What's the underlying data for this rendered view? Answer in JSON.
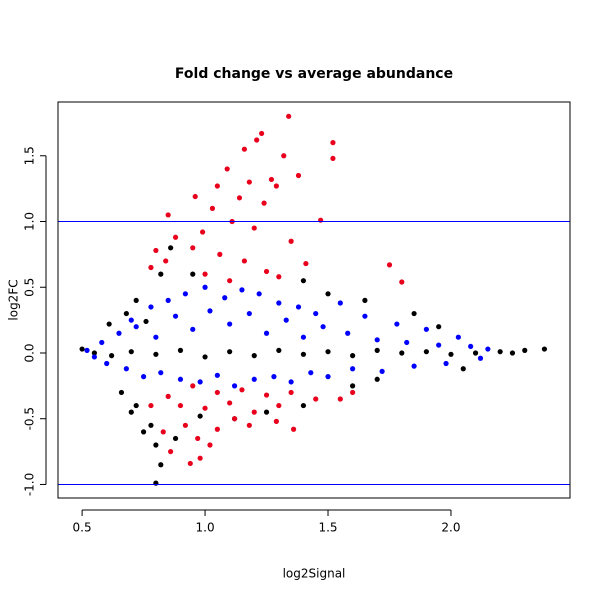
{
  "chart_data": {
    "type": "scatter",
    "title": "Fold change vs average abundance",
    "x_label": "log2Signal",
    "y_label": "log2FC",
    "xlim": [
      0.402,
      2.484
    ],
    "ylim": [
      -1.103,
      1.909
    ],
    "xticks": [
      0.5,
      {
        "value": 1,
        "label": "1.0"
      },
      1.5,
      {
        "value": 2,
        "label": "2.0"
      }
    ],
    "yticks": [
      {
        "value": -1,
        "label": "-1.0"
      },
      -0.5,
      {
        "value": 0,
        "label": "0.0"
      },
      0.5,
      {
        "value": 1,
        "label": "1.0"
      },
      1.5
    ],
    "hlines": [
      1,
      -1
    ],
    "hline_color": "#0000ff",
    "series": [
      {
        "color": "#000000",
        "x": [
          0.5,
          0.55,
          0.62,
          0.7,
          0.8,
          0.9,
          1.0,
          1.1,
          1.2,
          1.3,
          1.4,
          1.5,
          1.6,
          1.7,
          1.8,
          1.9,
          2.0,
          2.1,
          2.2,
          2.25,
          2.3,
          2.38,
          0.61,
          0.68,
          0.72,
          0.82,
          0.86,
          0.66,
          0.72,
          0.78,
          0.8,
          0.82,
          0.8,
          0.75,
          0.7,
          0.88,
          0.98,
          1.12,
          1.25,
          1.4,
          1.6,
          1.7,
          1.85,
          1.95,
          1.5,
          1.4,
          1.65,
          0.95,
          0.76,
          2.05
        ],
        "values": [
          0.03,
          0.0,
          -0.02,
          0.01,
          -0.01,
          0.02,
          -0.03,
          0.01,
          -0.02,
          0.02,
          -0.01,
          0.01,
          -0.02,
          0.02,
          0.0,
          0.01,
          -0.01,
          0.0,
          0.01,
          0.0,
          0.02,
          0.03,
          0.22,
          0.3,
          0.4,
          0.6,
          0.8,
          -0.3,
          -0.4,
          -0.55,
          -0.7,
          -0.85,
          -0.99,
          -0.6,
          -0.45,
          -0.65,
          -0.48,
          -0.5,
          -0.45,
          -0.4,
          -0.25,
          -0.2,
          0.3,
          0.2,
          0.45,
          0.55,
          0.4,
          0.6,
          0.24,
          -0.12
        ]
      },
      {
        "color": "#0000ff",
        "x": [
          0.52,
          0.55,
          0.58,
          0.6,
          0.65,
          0.68,
          0.7,
          0.72,
          0.75,
          0.78,
          0.8,
          0.82,
          0.85,
          0.88,
          0.9,
          0.92,
          0.95,
          0.98,
          1.0,
          1.02,
          1.05,
          1.08,
          1.1,
          1.12,
          1.15,
          1.18,
          1.2,
          1.22,
          1.25,
          1.28,
          1.3,
          1.33,
          1.35,
          1.38,
          1.4,
          1.43,
          1.45,
          1.48,
          1.5,
          1.55,
          1.58,
          1.6,
          1.65,
          1.7,
          1.72,
          1.78,
          1.82,
          1.85,
          1.9,
          1.95,
          1.98,
          2.03,
          2.08,
          2.12,
          2.15
        ],
        "values": [
          0.02,
          -0.03,
          0.08,
          -0.08,
          0.15,
          -0.12,
          0.25,
          0.2,
          -0.18,
          0.35,
          0.12,
          -0.15,
          0.4,
          0.28,
          -0.2,
          0.45,
          0.18,
          -0.22,
          0.5,
          0.32,
          -0.17,
          0.42,
          0.22,
          -0.25,
          0.48,
          0.3,
          -0.2,
          0.45,
          0.15,
          -0.18,
          0.38,
          0.25,
          -0.22,
          0.35,
          0.12,
          -0.15,
          0.3,
          0.2,
          -0.18,
          0.38,
          0.15,
          -0.12,
          0.28,
          0.1,
          -0.14,
          0.22,
          0.08,
          -0.1,
          0.18,
          0.06,
          -0.08,
          0.12,
          0.05,
          -0.04,
          0.03
        ]
      },
      {
        "color": "#e8001c",
        "x": [
          1.34,
          1.23,
          1.21,
          1.52,
          1.52,
          1.16,
          1.32,
          1.09,
          1.18,
          1.27,
          1.38,
          1.05,
          0.96,
          1.14,
          1.29,
          1.24,
          0.85,
          1.03,
          1.11,
          1.47,
          0.99,
          1.2,
          0.88,
          1.35,
          0.95,
          0.8,
          1.06,
          1.16,
          0.84,
          1.41,
          1.75,
          0.78,
          1.25,
          1.0,
          1.3,
          1.8,
          1.1,
          0.95,
          1.05,
          1.15,
          1.25,
          0.85,
          1.35,
          1.45,
          0.9,
          1.0,
          1.1,
          1.2,
          1.3,
          0.78,
          0.92,
          1.05,
          1.18,
          1.36,
          0.97,
          1.12,
          1.55,
          0.86,
          0.98,
          0.94,
          1.02,
          1.29,
          1.6,
          0.83
        ],
        "values": [
          1.8,
          1.67,
          1.62,
          1.6,
          1.48,
          1.55,
          1.5,
          1.4,
          1.3,
          1.32,
          1.35,
          1.27,
          1.19,
          1.18,
          1.27,
          1.14,
          1.05,
          1.1,
          1.0,
          1.01,
          0.92,
          0.95,
          0.88,
          0.85,
          0.8,
          0.78,
          0.75,
          0.7,
          0.7,
          0.68,
          0.67,
          0.65,
          0.62,
          0.6,
          0.58,
          0.54,
          0.55,
          -0.25,
          -0.3,
          -0.28,
          -0.32,
          -0.33,
          -0.3,
          -0.35,
          -0.4,
          -0.42,
          -0.38,
          -0.45,
          -0.4,
          -0.4,
          -0.55,
          -0.58,
          -0.55,
          -0.58,
          -0.65,
          -0.5,
          -0.35,
          -0.75,
          -0.8,
          -0.84,
          -0.7,
          -0.52,
          -0.3,
          -0.6
        ]
      }
    ]
  }
}
